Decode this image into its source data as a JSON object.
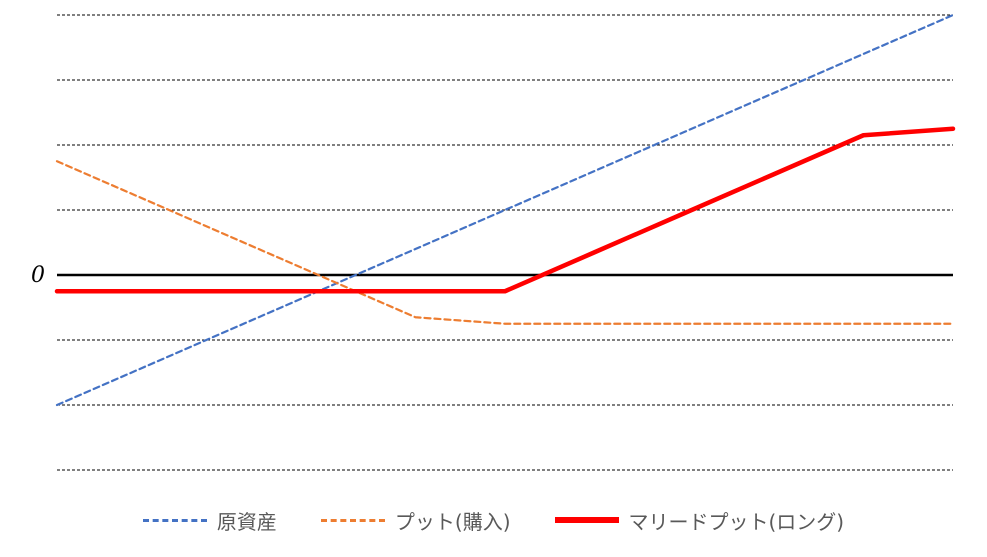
{
  "chart_data": {
    "type": "line",
    "title": "",
    "xlabel": "",
    "ylabel": "",
    "zero_label": "0",
    "grid": true,
    "legend_position": "bottom",
    "x": [
      0,
      1,
      2,
      3,
      4,
      5,
      6,
      7,
      8,
      9,
      10
    ],
    "xlim": [
      0,
      10
    ],
    "ylim": [
      -3,
      4
    ],
    "series": [
      {
        "name": "原資産",
        "values": [
          -2,
          -1.4,
          -0.8,
          -0.2,
          0.4,
          1,
          1.6,
          2.2,
          2.8,
          3.4,
          4
        ],
        "color": "#4472C4",
        "style": "dashed"
      },
      {
        "name": "プット(購入)",
        "values": [
          1.75,
          1.15,
          0.55,
          -0.05,
          -0.65,
          -0.75,
          -0.75,
          -0.75,
          -0.75,
          -0.75,
          -0.75
        ],
        "color": "#ED7D31",
        "style": "dashed"
      },
      {
        "name": "マリードプット(ロング)",
        "values": [
          -0.25,
          -0.25,
          -0.25,
          -0.25,
          -0.25,
          -0.25,
          0.35,
          0.95,
          1.55,
          2.15,
          2.25
        ],
        "color": "#FF0000",
        "style": "solid"
      }
    ]
  }
}
